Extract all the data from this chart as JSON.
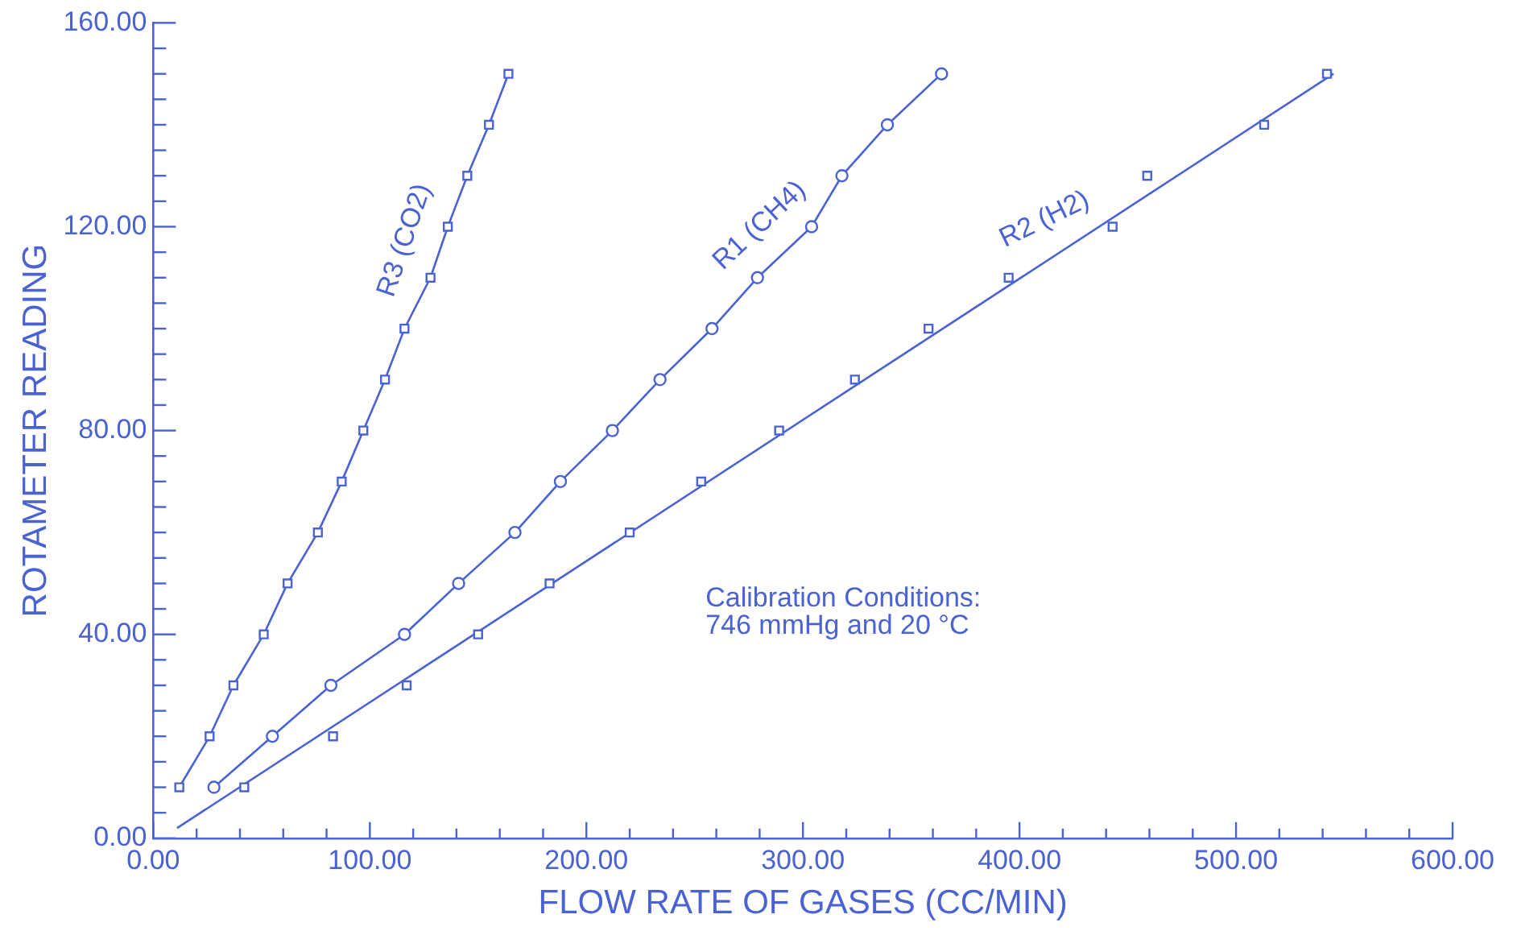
{
  "chart_data": {
    "type": "line",
    "xlabel": "FLOW RATE OF GASES (CC/MIN)",
    "ylabel": "ROTAMETER READING",
    "xlim": [
      0,
      600
    ],
    "ylim": [
      0,
      160
    ],
    "xticks": [
      {
        "value": 0,
        "label": "0.00"
      },
      {
        "value": 20,
        "label": null
      },
      {
        "value": 40,
        "label": null
      },
      {
        "value": 60,
        "label": null
      },
      {
        "value": 80,
        "label": null
      },
      {
        "value": 100,
        "label": "100.00"
      },
      {
        "value": 120,
        "label": null
      },
      {
        "value": 140,
        "label": null
      },
      {
        "value": 160,
        "label": null
      },
      {
        "value": 180,
        "label": null
      },
      {
        "value": 200,
        "label": "200.00"
      },
      {
        "value": 220,
        "label": null
      },
      {
        "value": 240,
        "label": null
      },
      {
        "value": 260,
        "label": null
      },
      {
        "value": 280,
        "label": null
      },
      {
        "value": 300,
        "label": "300.00"
      },
      {
        "value": 320,
        "label": null
      },
      {
        "value": 340,
        "label": null
      },
      {
        "value": 360,
        "label": null
      },
      {
        "value": 380,
        "label": null
      },
      {
        "value": 400,
        "label": "400.00"
      },
      {
        "value": 420,
        "label": null
      },
      {
        "value": 440,
        "label": null
      },
      {
        "value": 460,
        "label": null
      },
      {
        "value": 480,
        "label": null
      },
      {
        "value": 500,
        "label": "500.00"
      },
      {
        "value": 520,
        "label": null
      },
      {
        "value": 540,
        "label": null
      },
      {
        "value": 560,
        "label": null
      },
      {
        "value": 580,
        "label": null
      },
      {
        "value": 600,
        "label": "600.00"
      }
    ],
    "yticks": [
      {
        "value": 0,
        "label": "0.00"
      },
      {
        "value": 5,
        "label": null
      },
      {
        "value": 10,
        "label": null
      },
      {
        "value": 15,
        "label": null
      },
      {
        "value": 20,
        "label": null
      },
      {
        "value": 25,
        "label": null
      },
      {
        "value": 30,
        "label": null
      },
      {
        "value": 35,
        "label": null
      },
      {
        "value": 40,
        "label": "40.00"
      },
      {
        "value": 45,
        "label": null
      },
      {
        "value": 50,
        "label": null
      },
      {
        "value": 55,
        "label": null
      },
      {
        "value": 60,
        "label": null
      },
      {
        "value": 65,
        "label": null
      },
      {
        "value": 70,
        "label": null
      },
      {
        "value": 75,
        "label": null
      },
      {
        "value": 80,
        "label": "80.00"
      },
      {
        "value": 85,
        "label": null
      },
      {
        "value": 90,
        "label": null
      },
      {
        "value": 95,
        "label": null
      },
      {
        "value": 100,
        "label": null
      },
      {
        "value": 105,
        "label": null
      },
      {
        "value": 110,
        "label": null
      },
      {
        "value": 115,
        "label": null
      },
      {
        "value": 120,
        "label": "120.00"
      },
      {
        "value": 125,
        "label": null
      },
      {
        "value": 130,
        "label": null
      },
      {
        "value": 135,
        "label": null
      },
      {
        "value": 140,
        "label": null
      },
      {
        "value": 145,
        "label": null
      },
      {
        "value": 150,
        "label": null
      },
      {
        "value": 155,
        "label": null
      },
      {
        "value": 160,
        "label": "160.00"
      }
    ],
    "grid": false,
    "legend": false,
    "series": [
      {
        "name": "R3 (CO2)",
        "marker": "square",
        "color": "#4a62d2",
        "x": [
          12,
          26,
          37,
          51,
          62,
          76,
          87,
          97,
          107,
          116,
          128,
          136,
          145,
          155,
          164
        ],
        "values": [
          10,
          20,
          30,
          40,
          50,
          60,
          70,
          80,
          90,
          100,
          110,
          120,
          130,
          140,
          150
        ]
      },
      {
        "name": "R1 (CH4)",
        "marker": "circle",
        "color": "#4a62d2",
        "x": [
          28,
          55,
          82,
          116,
          141,
          167,
          188,
          212,
          234,
          258,
          279,
          304,
          318,
          339,
          364
        ],
        "values": [
          10,
          20,
          30,
          40,
          50,
          60,
          70,
          80,
          90,
          100,
          110,
          120,
          130,
          140,
          150
        ]
      },
      {
        "name": "R2 (H2)",
        "type": "scatter",
        "marker": "square",
        "color": "#4a62d2",
        "x": [
          42,
          83,
          117,
          150,
          183,
          220,
          253,
          289,
          324,
          358,
          395,
          443,
          459,
          513,
          542
        ],
        "values": [
          10,
          20,
          30,
          40,
          50,
          60,
          70,
          80,
          90,
          100,
          110,
          120,
          130,
          140,
          150
        ]
      },
      {
        "marker": "none",
        "color": "#4a62d2",
        "x": [
          11,
          545
        ],
        "values": [
          2,
          150
        ]
      }
    ],
    "annotations": [
      "Calibration Conditions:\n746 mmHg and 20 °C"
    ]
  }
}
